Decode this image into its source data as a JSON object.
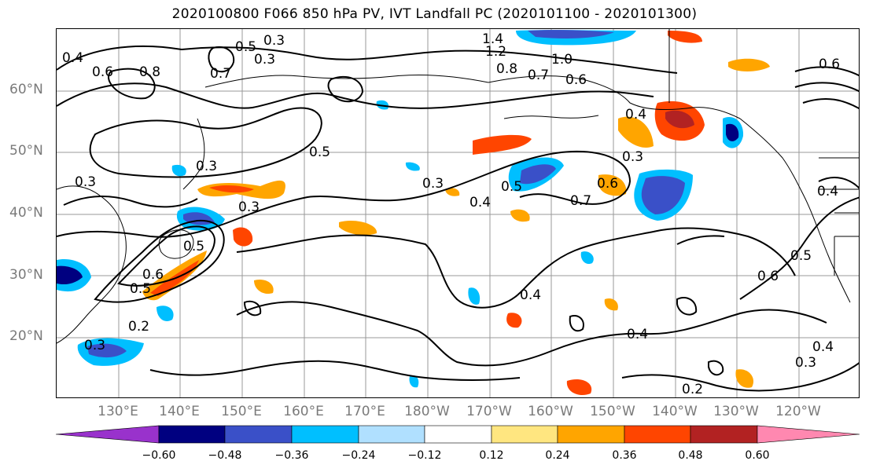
{
  "title": "2020100800 F066 850 hPa PV, IVT Landfall PC (2020101100 - 2020101300)",
  "map": {
    "lat_labels": [
      "60°N",
      "50°N",
      "40°N",
      "30°N",
      "20°N"
    ],
    "lon_labels": [
      "130°E",
      "140°E",
      "150°E",
      "160°E",
      "170°E",
      "180°W",
      "170°W",
      "160°W",
      "150°W",
      "140°W",
      "130°W",
      "120°W"
    ],
    "contour_labels": [
      "0.3",
      "1.4",
      "1.2",
      "1.0",
      "0.8",
      "0.7",
      "0.6",
      "0.5",
      "0.4",
      "0.3",
      "0.5",
      "0.3",
      "0.4",
      "0.6",
      "0.7",
      "0.8",
      "0.5",
      "0.3",
      "0.3",
      "0.4",
      "0.5",
      "0.7",
      "0.6",
      "0.3",
      "0.4",
      "0.6",
      "0.5",
      "0.4",
      "0.4",
      "0.3",
      "0.2",
      "0.2",
      "0.3",
      "0.5",
      "0.6",
      "0.3",
      "0.4",
      "0.6"
    ],
    "gridlines": true
  },
  "colorbar": {
    "ticks": [
      "−0.60",
      "−0.48",
      "−0.36",
      "−0.24",
      "−0.12",
      "0.12",
      "0.24",
      "0.36",
      "0.48",
      "0.60"
    ],
    "colors": [
      "#9932CC",
      "#000080",
      "#3A50C8",
      "#00BFFF",
      "#B0E0FF",
      "#FFFFFF",
      "#FFE680",
      "#FFA500",
      "#FF4500",
      "#B22222",
      "#FF88B0"
    ]
  }
}
